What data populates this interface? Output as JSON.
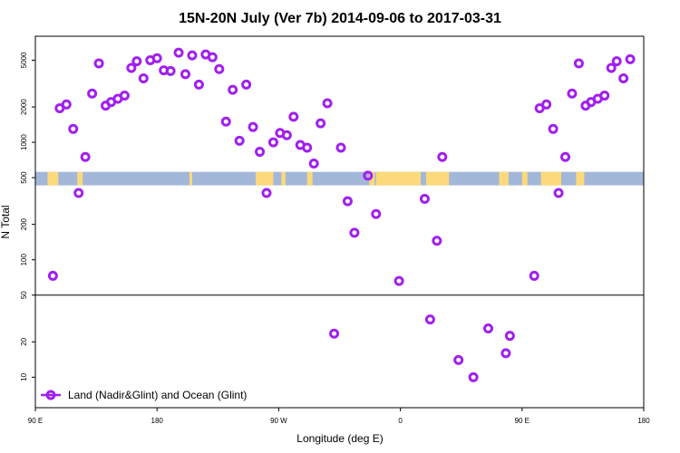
{
  "chart_data": {
    "type": "scatter",
    "title": "15N-20N July (Ver 7b)   2014-09-06 to 2017-03-31",
    "xlabel": "Longitude (deg E)",
    "ylabel": "N Total",
    "x_ticks": [
      {
        "value": 90,
        "label": "90 E"
      },
      {
        "value": 180,
        "label": "180"
      },
      {
        "value": 270,
        "label": "90 W"
      },
      {
        "value": 360,
        "label": "0"
      },
      {
        "value": 450,
        "label": "90 E"
      },
      {
        "value": 540,
        "label": "180"
      }
    ],
    "xlim": [
      90,
      540
    ],
    "ylim_log": [
      5.5,
      8000
    ],
    "y_ticks": [
      {
        "value": 10,
        "label": "10"
      },
      {
        "value": 20,
        "label": "20"
      },
      {
        "value": 50,
        "label": "50"
      },
      {
        "value": 100,
        "label": "100"
      },
      {
        "value": 200,
        "label": "200"
      },
      {
        "value": 500,
        "label": "500"
      },
      {
        "value": 1000,
        "label": "1000"
      },
      {
        "value": 2000,
        "label": "2000"
      },
      {
        "value": 5000,
        "label": "5000"
      }
    ],
    "reference_line": 50,
    "land_ocean_band": {
      "y_low": 430,
      "y_high": 560,
      "ocean_color": "#a3b7d9",
      "land_color": "#fcd97a"
    },
    "land_segments": [
      [
        99,
        107
      ],
      [
        121,
        125
      ],
      [
        204,
        206
      ],
      [
        253,
        255
      ],
      [
        255,
        266
      ],
      [
        272,
        275
      ],
      [
        291,
        295
      ],
      [
        337,
        341
      ],
      [
        342,
        375
      ],
      [
        379,
        396
      ],
      [
        433,
        440
      ],
      [
        450,
        454
      ],
      [
        464,
        479
      ],
      [
        490,
        496
      ]
    ],
    "legend": {
      "label": "Land (Nadir&Glint) and Ocean (Glint)",
      "position": "bottom-left"
    },
    "series": [
      {
        "name": "Land (Nadir&Glint) and Ocean (Glint)",
        "color": "#a020f0",
        "points": [
          [
            103,
            73
          ],
          [
            108,
            1950
          ],
          [
            113,
            2100
          ],
          [
            118,
            1300
          ],
          [
            122,
            370
          ],
          [
            127,
            750
          ],
          [
            132,
            2600
          ],
          [
            137,
            4700
          ],
          [
            142,
            2050
          ],
          [
            146,
            2200
          ],
          [
            151,
            2350
          ],
          [
            156,
            2500
          ],
          [
            161,
            4300
          ],
          [
            165,
            4900
          ],
          [
            170,
            3500
          ],
          [
            175,
            5000
          ],
          [
            180,
            5200
          ],
          [
            185,
            4100
          ],
          [
            190,
            4050
          ],
          [
            196,
            5800
          ],
          [
            201,
            3800
          ],
          [
            206,
            5500
          ],
          [
            211,
            3100
          ],
          [
            216,
            5600
          ],
          [
            221,
            5300
          ],
          [
            226,
            4200
          ],
          [
            231,
            1500
          ],
          [
            236,
            2800
          ],
          [
            241,
            1030
          ],
          [
            246,
            3100
          ],
          [
            251,
            1350
          ],
          [
            256,
            830
          ],
          [
            261,
            370
          ],
          [
            266,
            1000
          ],
          [
            271,
            1200
          ],
          [
            276,
            1150
          ],
          [
            281,
            1650
          ],
          [
            286,
            950
          ],
          [
            291,
            900
          ],
          [
            296,
            660
          ],
          [
            301,
            1450
          ],
          [
            306,
            2150
          ],
          [
            311,
            23.5
          ],
          [
            316,
            900
          ],
          [
            321,
            315
          ],
          [
            326,
            170
          ],
          [
            336,
            520
          ],
          [
            342,
            245
          ],
          [
            359,
            66
          ],
          [
            378,
            330
          ],
          [
            382,
            31
          ],
          [
            387,
            145
          ],
          [
            391,
            750
          ],
          [
            403,
            14
          ],
          [
            414,
            10
          ],
          [
            425,
            26
          ],
          [
            438,
            16
          ],
          [
            441,
            22.5
          ],
          [
            459,
            73
          ],
          [
            463,
            1950
          ],
          [
            468,
            2100
          ],
          [
            473,
            1300
          ],
          [
            477,
            370
          ],
          [
            482,
            750
          ],
          [
            487,
            2600
          ],
          [
            492,
            4700
          ],
          [
            497,
            2050
          ],
          [
            501,
            2200
          ],
          [
            506,
            2350
          ],
          [
            511,
            2500
          ],
          [
            516,
            4300
          ],
          [
            520,
            4900
          ],
          [
            525,
            3500
          ],
          [
            530,
            5100
          ]
        ]
      }
    ]
  }
}
